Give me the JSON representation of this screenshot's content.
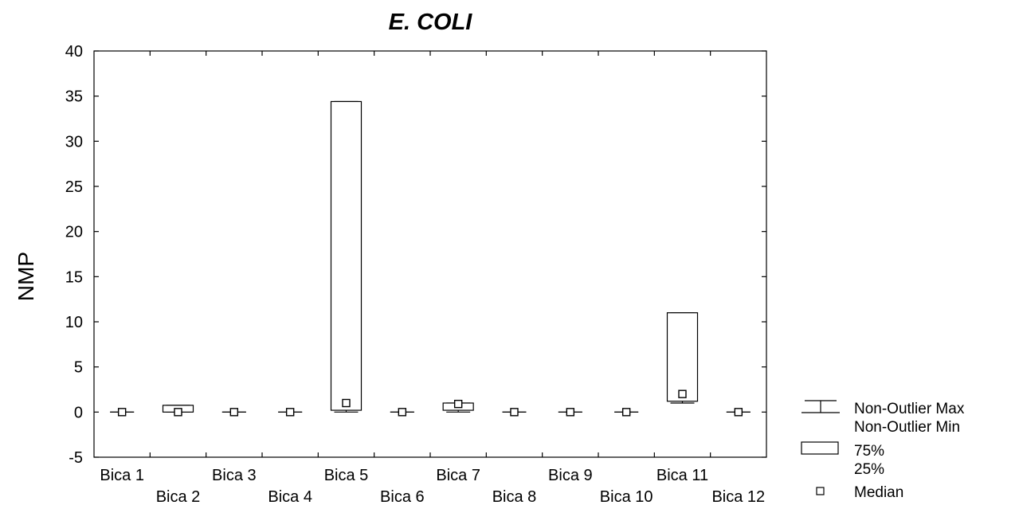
{
  "chart_data": {
    "type": "box",
    "title": "E. COLI",
    "xlabel": "",
    "ylabel": "NMP",
    "ylim": [
      -5,
      40
    ],
    "yticks": [
      -5,
      0,
      5,
      10,
      15,
      20,
      25,
      30,
      35,
      40
    ],
    "grid": false,
    "legend_position": "bottom-right",
    "categories": [
      "Bica 1",
      "Bica 2",
      "Bica 3",
      "Bica 4",
      "Bica 5",
      "Bica 6",
      "Bica 7",
      "Bica 8",
      "Bica 9",
      "Bica 10",
      "Bica 11",
      "Bica 12"
    ],
    "boxes": [
      {
        "min": 0,
        "q1": 0,
        "median": 0,
        "q3": 0,
        "max": 0
      },
      {
        "min": 0,
        "q1": 0,
        "median": 0,
        "q3": 0.75,
        "max": 0.75
      },
      {
        "min": 0,
        "q1": 0,
        "median": 0,
        "q3": 0,
        "max": 0
      },
      {
        "min": 0,
        "q1": 0,
        "median": 0,
        "q3": 0,
        "max": 0
      },
      {
        "min": 0,
        "q1": 0.2,
        "median": 1,
        "q3": 34.4,
        "max": 34.4
      },
      {
        "min": 0,
        "q1": 0,
        "median": 0,
        "q3": 0,
        "max": 0
      },
      {
        "min": 0,
        "q1": 0.2,
        "median": 0.9,
        "q3": 1,
        "max": 1
      },
      {
        "min": 0,
        "q1": 0,
        "median": 0,
        "q3": 0,
        "max": 0
      },
      {
        "min": 0,
        "q1": 0,
        "median": 0,
        "q3": 0,
        "max": 0
      },
      {
        "min": 0,
        "q1": 0,
        "median": 0,
        "q3": 0,
        "max": 0
      },
      {
        "min": 1,
        "q1": 1.2,
        "median": 2,
        "q3": 11,
        "max": 11
      },
      {
        "min": 0,
        "q1": 0,
        "median": 0,
        "q3": 0,
        "max": 0
      }
    ],
    "legend": {
      "whisker_max": "Non-Outlier Max",
      "whisker_min": "Non-Outlier Min",
      "box_top": "75%",
      "box_bottom": "25%",
      "median": "Median"
    }
  }
}
